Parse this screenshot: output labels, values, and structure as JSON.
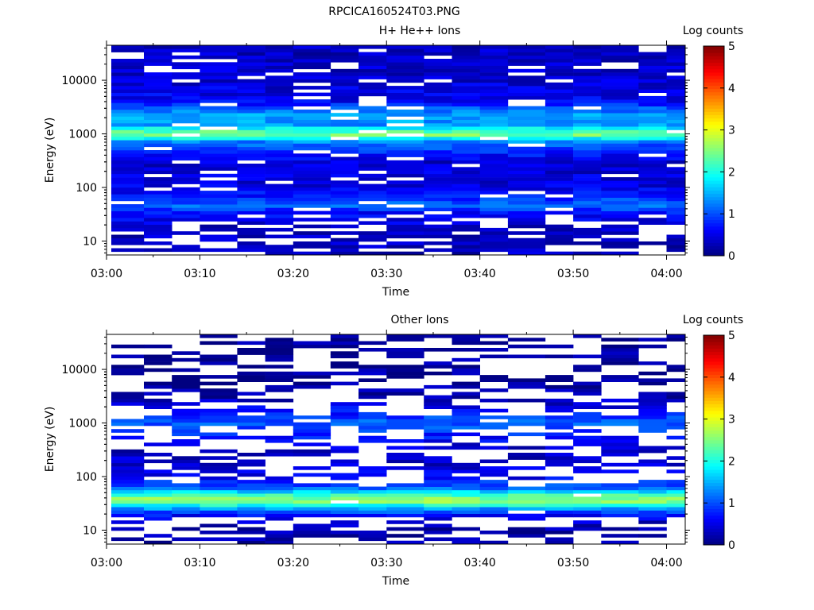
{
  "figure_title": "RPCICA160524T03.PNG",
  "colorbar_ticks": [
    "0",
    "1",
    "2",
    "3",
    "4",
    "5"
  ],
  "colormap": "jet",
  "background": "#ffffff",
  "chart_data": [
    {
      "type": "heatmap",
      "title": "H+ He++ Ions",
      "xlabel": "Time",
      "ylabel": "Energy (eV)",
      "colorbar_label": "Log counts",
      "x_ticks": [
        "03:00",
        "03:10",
        "03:20",
        "03:30",
        "03:40",
        "03:50",
        "04:00"
      ],
      "y_ticks": [
        "10",
        "100",
        "1000",
        "10000"
      ],
      "y_scale": "log",
      "y_range_eV": [
        5.5,
        45000
      ],
      "x_range": [
        "03:00",
        "04:02"
      ],
      "color_range": [
        0,
        5
      ],
      "time_bins": [
        "03:00",
        "03:04",
        "03:07",
        "03:10",
        "03:14",
        "03:17",
        "03:20",
        "03:24",
        "03:27",
        "03:30",
        "03:34",
        "03:37",
        "03:40",
        "03:43",
        "03:47",
        "03:50",
        "03:53",
        "03:57",
        "04:00"
      ],
      "band_profile": [
        {
          "energy_eV": 10,
          "log_counts": 0.3
        },
        {
          "energy_eV": 20,
          "log_counts": 0.4
        },
        {
          "energy_eV": 35,
          "log_counts": 0.7
        },
        {
          "energy_eV": 45,
          "log_counts": 1.1
        },
        {
          "energy_eV": 60,
          "log_counts": 0.9
        },
        {
          "energy_eV": 100,
          "log_counts": 0.5
        },
        {
          "energy_eV": 300,
          "log_counts": 0.4
        },
        {
          "energy_eV": 700,
          "log_counts": 1.2
        },
        {
          "energy_eV": 1000,
          "log_counts": 2.6
        },
        {
          "energy_eV": 1500,
          "log_counts": 1.3
        },
        {
          "energy_eV": 2200,
          "log_counts": 1.5
        },
        {
          "energy_eV": 4000,
          "log_counts": 0.6
        },
        {
          "energy_eV": 10000,
          "log_counts": 0.4
        },
        {
          "energy_eV": 40000,
          "log_counts": 0.3
        }
      ]
    },
    {
      "type": "heatmap",
      "title": "Other Ions",
      "xlabel": "Time",
      "ylabel": "Energy (eV)",
      "colorbar_label": "Log counts",
      "x_ticks": [
        "03:00",
        "03:10",
        "03:20",
        "03:30",
        "03:40",
        "03:50",
        "04:00"
      ],
      "y_ticks": [
        "10",
        "100",
        "1000",
        "10000"
      ],
      "y_scale": "log",
      "y_range_eV": [
        5.5,
        45000
      ],
      "x_range": [
        "03:00",
        "04:02"
      ],
      "color_range": [
        0,
        5
      ],
      "time_bins": [
        "03:00",
        "03:04",
        "03:07",
        "03:10",
        "03:14",
        "03:17",
        "03:20",
        "03:24",
        "03:27",
        "03:30",
        "03:34",
        "03:37",
        "03:40",
        "03:43",
        "03:47",
        "03:50",
        "03:53",
        "03:57",
        "04:00"
      ],
      "band_profile": [
        {
          "energy_eV": 10,
          "log_counts": 0.2
        },
        {
          "energy_eV": 18,
          "log_counts": 0.5
        },
        {
          "energy_eV": 25,
          "log_counts": 1.3
        },
        {
          "energy_eV": 35,
          "log_counts": 2.7
        },
        {
          "energy_eV": 45,
          "log_counts": 2.2
        },
        {
          "energy_eV": 60,
          "log_counts": 1.2
        },
        {
          "energy_eV": 100,
          "log_counts": 0.5
        },
        {
          "energy_eV": 300,
          "log_counts": 0.3
        },
        {
          "energy_eV": 1000,
          "log_counts": 1.1
        },
        {
          "energy_eV": 3000,
          "log_counts": 0.2
        },
        {
          "energy_eV": 10000,
          "log_counts": 0.15
        },
        {
          "energy_eV": 40000,
          "log_counts": 0.1
        }
      ]
    }
  ]
}
